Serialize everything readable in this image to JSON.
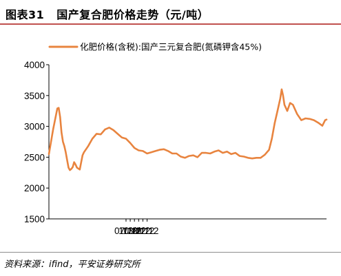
{
  "figure": {
    "number": "图表31",
    "title": "国产复合肥价格走势（元/吨）",
    "source": "资料来源：ifind，平安证券研究所"
  },
  "colors": {
    "series": "#e8843f",
    "title_rule": "#c0504d"
  },
  "chart_data": {
    "type": "line",
    "title": "",
    "xlabel": "",
    "ylabel": "",
    "ylim": [
      1500,
      4000
    ],
    "yticks": [
      1500,
      2000,
      2500,
      3000,
      3500,
      4000
    ],
    "xticks": [
      "07/12",
      "10/12",
      "13/12",
      "16/12",
      "19/12",
      "22/12"
    ],
    "xlim": [
      "2007-12",
      "2024-06"
    ],
    "grid": false,
    "legend_position": "top",
    "series": [
      {
        "name": "化肥价格(含税):国产三元复合肥(氮磷钾含45%)",
        "x": [
          "2007-12",
          "2008-03",
          "2008-06",
          "2008-07",
          "2008-08",
          "2008-09",
          "2008-10",
          "2008-11",
          "2008-12",
          "2009-01",
          "2009-02",
          "2009-03",
          "2009-04",
          "2009-05",
          "2009-06",
          "2009-07",
          "2009-08",
          "2009-10",
          "2009-12",
          "2010-01",
          "2010-04",
          "2010-07",
          "2010-10",
          "2011-01",
          "2011-04",
          "2011-07",
          "2011-10",
          "2012-01",
          "2012-04",
          "2012-07",
          "2012-10",
          "2013-01",
          "2013-04",
          "2013-07",
          "2013-10",
          "2014-01",
          "2014-04",
          "2014-07",
          "2014-10",
          "2015-01",
          "2015-04",
          "2015-07",
          "2015-10",
          "2016-01",
          "2016-04",
          "2016-07",
          "2016-10",
          "2017-01",
          "2017-04",
          "2017-07",
          "2017-10",
          "2018-01",
          "2018-04",
          "2018-07",
          "2018-10",
          "2019-01",
          "2019-04",
          "2019-07",
          "2019-10",
          "2020-01",
          "2020-04",
          "2020-07",
          "2020-10",
          "2021-01",
          "2021-03",
          "2021-05",
          "2021-07",
          "2021-09",
          "2021-10",
          "2021-11",
          "2021-12",
          "2022-02",
          "2022-04",
          "2022-06",
          "2022-09",
          "2022-12",
          "2023-03",
          "2023-06",
          "2023-09",
          "2023-12",
          "2024-03",
          "2024-05",
          "2024-06"
        ],
        "y": [
          2550,
          2950,
          3290,
          3300,
          3150,
          2900,
          2750,
          2680,
          2580,
          2450,
          2330,
          2290,
          2310,
          2340,
          2420,
          2380,
          2330,
          2300,
          2530,
          2580,
          2680,
          2800,
          2880,
          2870,
          2950,
          2980,
          2940,
          2880,
          2820,
          2800,
          2730,
          2650,
          2610,
          2600,
          2560,
          2580,
          2600,
          2620,
          2630,
          2600,
          2560,
          2560,
          2510,
          2490,
          2520,
          2530,
          2500,
          2570,
          2570,
          2560,
          2590,
          2610,
          2570,
          2590,
          2550,
          2570,
          2520,
          2510,
          2490,
          2480,
          2490,
          2490,
          2540,
          2620,
          2800,
          3050,
          3250,
          3450,
          3600,
          3500,
          3350,
          3250,
          3380,
          3350,
          3200,
          3100,
          3130,
          3120,
          3100,
          3060,
          3010,
          3100,
          3110
        ]
      }
    ]
  }
}
